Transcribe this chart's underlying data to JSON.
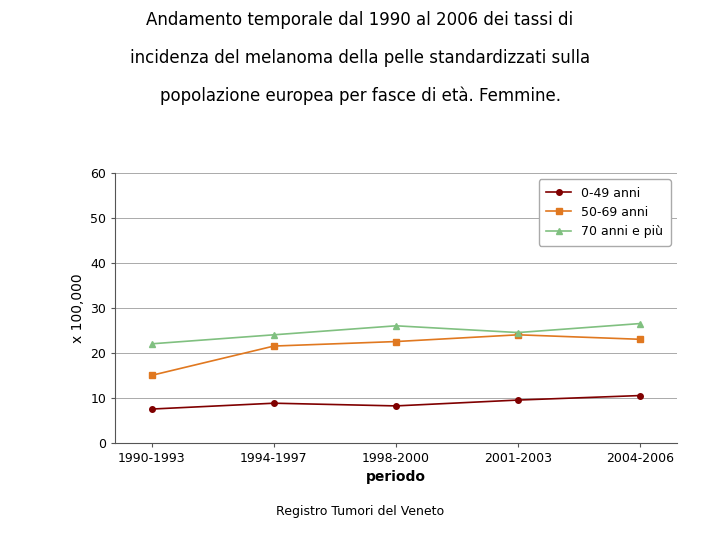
{
  "title_line1": "Andamento temporale dal 1990 al 2006 dei tassi di",
  "title_line2": "incidenza del melanoma della pelle standardizzati sulla",
  "title_line3": "popolazione europea per fasce di età. Femmine.",
  "xlabel": "periodo",
  "ylabel": "x 100,000",
  "footer": "Registro Tumori del Veneto",
  "categories": [
    "1990-1993",
    "1994-1997",
    "1998-2000",
    "2001-2003",
    "2004-2006"
  ],
  "series": [
    {
      "label": "0-49 anni",
      "color": "#800000",
      "marker": "o",
      "values": [
        7.5,
        8.8,
        8.2,
        9.5,
        10.5
      ]
    },
    {
      "label": "50-69 anni",
      "color": "#E07820",
      "marker": "s",
      "values": [
        15.0,
        21.5,
        22.5,
        24.0,
        23.0
      ]
    },
    {
      "label": "70 anni e più",
      "color": "#80C080",
      "marker": "^",
      "values": [
        22.0,
        24.0,
        26.0,
        24.5,
        26.5
      ]
    }
  ],
  "ylim": [
    0,
    60
  ],
  "yticks": [
    0,
    10,
    20,
    30,
    40,
    50,
    60
  ],
  "background_color": "#ffffff",
  "title_fontsize": 12,
  "axis_label_fontsize": 10,
  "legend_fontsize": 9,
  "tick_fontsize": 9,
  "footer_fontsize": 9
}
